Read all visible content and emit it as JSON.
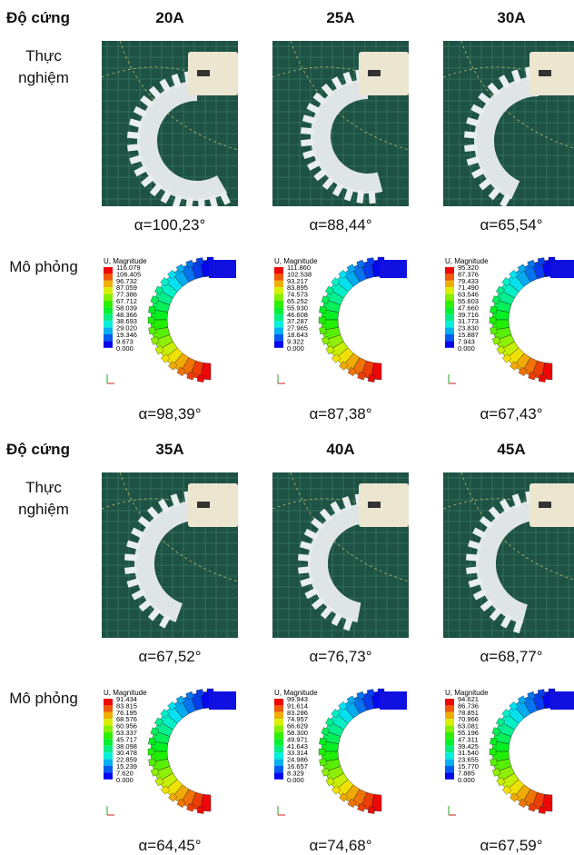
{
  "blocks": [
    {
      "header": {
        "label": "Độ cứng",
        "columns": [
          "20A",
          "25A",
          "30A"
        ]
      },
      "experiment_label": "Thực nghiệm",
      "experiment_angles": [
        "α=100,23°",
        "α=88,44°",
        "α=65,54°"
      ],
      "simulation_label": "Mô phỏng",
      "simulations": [
        {
          "legend_title": "U, Magnitude",
          "legend_values": [
            "116.079",
            "106.405",
            "96.732",
            "87.059",
            "77.386",
            "67.712",
            "58.039",
            "48.366",
            "38.693",
            "29.020",
            "19.346",
            "9.673",
            "0.000"
          ],
          "angle": "α=98,39°"
        },
        {
          "legend_title": "U, Magnitude",
          "legend_values": [
            "111.860",
            "102.538",
            "93.217",
            "83.895",
            "74.573",
            "65.252",
            "55.930",
            "46.608",
            "37.287",
            "27.965",
            "18.643",
            "9.322",
            "0.000"
          ],
          "angle": "α=87,38°"
        },
        {
          "legend_title": "U, Magnitude",
          "legend_values": [
            "95.320",
            "87.376",
            "79.433",
            "71.490",
            "63.546",
            "55.603",
            "47.660",
            "39.716",
            "31.773",
            "23.830",
            "15.887",
            "7.943",
            "0.000"
          ],
          "angle": "α=67,43°"
        }
      ]
    },
    {
      "header": {
        "label": "Độ cứng",
        "columns": [
          "35A",
          "40A",
          "45A"
        ]
      },
      "experiment_label": "Thực nghiệm",
      "experiment_angles": [
        "α=67,52°",
        "α=76,73°",
        "α=68,77°"
      ],
      "simulation_label": "Mô phỏng",
      "simulations": [
        {
          "legend_title": "U, Magnitude",
          "legend_values": [
            "91.434",
            "83.815",
            "76.195",
            "68.576",
            "60.956",
            "53.337",
            "45.717",
            "38.098",
            "30.478",
            "22.859",
            "15.239",
            "7.620",
            "0.000"
          ],
          "angle": "α=64,45°"
        },
        {
          "legend_title": "U, Magnitude",
          "legend_values": [
            "99.943",
            "91.614",
            "83.286",
            "74.957",
            "66.629",
            "58.300",
            "49.971",
            "41.643",
            "33.314",
            "24.986",
            "16.657",
            "8.329",
            "0.000"
          ],
          "angle": "α=74,68°"
        },
        {
          "legend_title": "U, Magnitude",
          "legend_values": [
            "94.621",
            "86.736",
            "78.851",
            "70.966",
            "63.081",
            "55.196",
            "47.311",
            "39.425",
            "31.540",
            "23.655",
            "15.770",
            "7.885",
            "0.000"
          ],
          "angle": "α=67,59°"
        }
      ]
    }
  ]
}
